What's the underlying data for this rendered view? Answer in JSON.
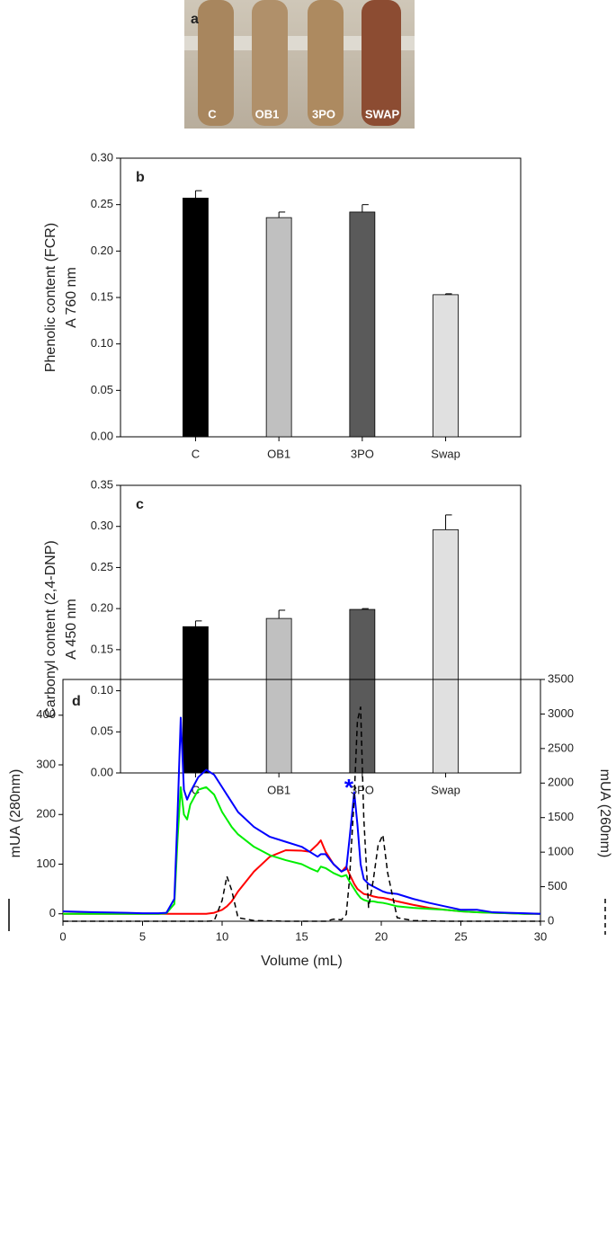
{
  "photo": {
    "label": "a",
    "tube_labels": [
      "C",
      "OB1",
      "3PO",
      "SWAP"
    ]
  },
  "chart_data": [
    {
      "type": "bar",
      "panel": "b",
      "ylabel": [
        "Phenolic content (FCR)",
        "A 760 nm"
      ],
      "categories": [
        "C",
        "OB1",
        "3PO",
        "Swap"
      ],
      "values": [
        0.257,
        0.236,
        0.242,
        0.153
      ],
      "errors": [
        0.008,
        0.006,
        0.008,
        0.001
      ],
      "colors": [
        "#000000",
        "#c0c0c0",
        "#5a5a5a",
        "#e0e0e0"
      ],
      "ylim": [
        0,
        0.3
      ],
      "yticks": [
        {
          "value": 0,
          "label": "0.00"
        },
        0.05,
        {
          "value": 0.1,
          "label": "0.10"
        },
        0.15,
        {
          "value": 0.2,
          "label": "0.20"
        },
        0.25,
        {
          "value": 0.3,
          "label": "0.30"
        }
      ]
    },
    {
      "type": "bar",
      "panel": "c",
      "ylabel": [
        "Carbonyl content (2,4-DNP)",
        "A 450 nm"
      ],
      "categories": [
        "C",
        "OB1",
        "3PO",
        "Swap"
      ],
      "values": [
        0.178,
        0.188,
        0.199,
        0.296
      ],
      "errors": [
        0.007,
        0.01,
        0.001,
        0.018
      ],
      "colors": [
        "#000000",
        "#c0c0c0",
        "#5a5a5a",
        "#e0e0e0"
      ],
      "ylim": [
        0,
        0.35
      ],
      "yticks": [
        {
          "value": 0,
          "label": "0.00"
        },
        0.05,
        {
          "value": 0.1,
          "label": "0.10"
        },
        0.15,
        {
          "value": 0.2,
          "label": "0.20"
        },
        0.25,
        {
          "value": 0.3,
          "label": "0.30"
        },
        0.35
      ]
    },
    {
      "type": "line",
      "panel": "d",
      "xlabel": "Volume (mL)",
      "ylabel": "mUA (280nm)",
      "y2label": "mUA (260nm)",
      "annotation": {
        "text": "*",
        "x": 18.3,
        "y": 262,
        "color": "#0000ff"
      },
      "x": [
        0,
        2,
        4,
        5,
        6,
        6.5,
        7,
        7.2,
        7.4,
        7.6,
        7.8,
        8,
        8.5,
        9,
        9.5,
        10,
        10.3,
        10.6,
        11,
        12,
        13,
        14,
        15,
        15.5,
        16,
        16.2,
        16.5,
        17,
        17.5,
        17.8,
        18,
        18.3,
        18.5,
        18.7,
        18.9,
        19.2,
        19.5,
        19.8,
        20.1,
        20.4,
        21,
        22,
        23,
        24,
        25,
        26,
        27,
        28,
        29,
        30
      ],
      "series": [
        {
          "color": "#ff0000",
          "values": [
            0,
            0,
            0,
            0,
            0,
            0,
            0,
            0,
            0,
            0,
            0,
            0,
            0,
            0,
            2,
            8,
            15,
            25,
            45,
            85,
            115,
            128,
            127,
            125,
            140,
            148,
            125,
            100,
            85,
            95,
            80,
            60,
            50,
            45,
            40,
            38,
            35,
            33,
            32,
            30,
            25,
            18,
            12,
            8,
            5,
            3,
            2,
            1,
            0,
            0
          ]
        },
        {
          "color": "#00ee00",
          "values": [
            0,
            0,
            0,
            0,
            0,
            1,
            20,
            150,
            255,
            200,
            190,
            220,
            250,
            255,
            240,
            205,
            190,
            175,
            160,
            135,
            118,
            108,
            100,
            92,
            85,
            95,
            92,
            82,
            75,
            78,
            65,
            50,
            40,
            32,
            28,
            25,
            25,
            23,
            22,
            20,
            15,
            12,
            10,
            8,
            5,
            3,
            2,
            1,
            0,
            0
          ]
        },
        {
          "color": "#0000ff",
          "values": [
            5,
            3,
            2,
            1,
            1,
            2,
            30,
            200,
            395,
            250,
            230,
            245,
            275,
            290,
            280,
            255,
            240,
            225,
            205,
            175,
            155,
            145,
            135,
            125,
            115,
            120,
            120,
            100,
            85,
            90,
            150,
            245,
            180,
            100,
            70,
            60,
            55,
            50,
            45,
            42,
            40,
            30,
            22,
            15,
            8,
            8,
            3,
            2,
            1,
            0
          ]
        },
        {
          "color": "#000000",
          "dash": true,
          "axis": "y2",
          "values": [
            0,
            0,
            0,
            0,
            0,
            0,
            0,
            0,
            0,
            0,
            0,
            0,
            0,
            0,
            5,
            300,
            650,
            450,
            50,
            10,
            5,
            0,
            0,
            0,
            0,
            0,
            0,
            30,
            20,
            100,
            600,
            1800,
            2900,
            3100,
            1500,
            200,
            600,
            1100,
            1250,
            700,
            50,
            10,
            5,
            0,
            0,
            0,
            0,
            0,
            0,
            0
          ]
        }
      ],
      "xlim": [
        0,
        30
      ],
      "xticks": [
        0,
        5,
        10,
        15,
        20,
        25,
        30
      ],
      "ylim": [
        -15,
        472
      ],
      "yticks": [
        0,
        100,
        200,
        300,
        400
      ],
      "y2lim": [
        0,
        3500
      ],
      "y2ticks": [
        0,
        500,
        1000,
        1500,
        2000,
        2500,
        3000,
        3500
      ]
    }
  ]
}
